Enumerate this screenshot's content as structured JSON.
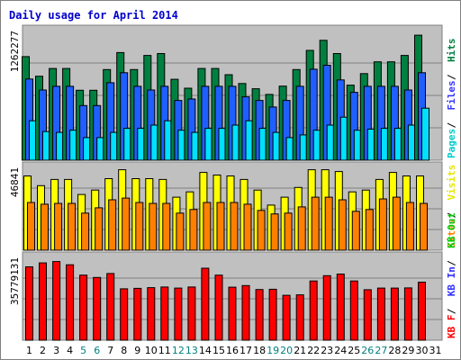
{
  "chart_data": {
    "type": "bar",
    "title": "Daily usage for April 2014",
    "categories": [
      "1",
      "2",
      "3",
      "4",
      "5",
      "6",
      "7",
      "8",
      "9",
      "10",
      "11",
      "12",
      "13",
      "14",
      "15",
      "16",
      "17",
      "18",
      "19",
      "20",
      "21",
      "22",
      "23",
      "24",
      "25",
      "26",
      "27",
      "28",
      "29",
      "30",
      "31"
    ],
    "weekend_days": [
      "5",
      "6",
      "12",
      "13",
      "19",
      "20",
      "26",
      "27"
    ],
    "grid": true,
    "panels": [
      {
        "id": "hits",
        "ymax_label": "1262277",
        "ymax": 1262277,
        "legend": [
          {
            "text": "Pages",
            "color": "#00cccc"
          },
          {
            "text": "Files",
            "color": "#3333ff"
          },
          {
            "text": "Hits",
            "color": "#008040"
          }
        ],
        "series": [
          {
            "name": "Hits",
            "color": "#008040",
            "values": [
              1009000,
              818000,
              893000,
              893000,
              681000,
              681000,
              883000,
              1048000,
              883000,
              1020000,
              1039000,
              788000,
              701000,
              893000,
              893000,
              833000,
              747000,
              696000,
              641000,
              721000,
              883000,
              1069000,
              1168000,
              1039000,
              731000,
              843000,
              958000,
              958000,
              1020000,
              1218000,
              null
            ]
          },
          {
            "name": "Files",
            "color": "#1f5fff",
            "values": [
              791000,
              684000,
              720000,
              720000,
              532000,
              532000,
              755000,
              852000,
              720000,
              684000,
              720000,
              582000,
              596000,
              720000,
              720000,
              720000,
              617000,
              582000,
              518000,
              582000,
              720000,
              886000,
              925000,
              782000,
              661000,
              720000,
              720000,
              720000,
              684000,
              852000,
              null
            ]
          },
          {
            "name": "Pages",
            "color": "#00e0ff",
            "values": [
              384000,
              279000,
              271000,
              292000,
              220000,
              220000,
              271000,
              310000,
              310000,
              342000,
              384000,
              292000,
              271000,
              310000,
              310000,
              342000,
              384000,
              310000,
              271000,
              220000,
              246000,
              292000,
              342000,
              419000,
              292000,
              302000,
              310000,
              310000,
              342000,
              507000,
              null
            ]
          }
        ]
      },
      {
        "id": "visits",
        "ymax_label": "46841",
        "ymax": 46841,
        "legend": [
          {
            "text": "Sites",
            "color": "#ff8000"
          },
          {
            "text": "Visits",
            "color": "#e6e600"
          }
        ],
        "series": [
          {
            "name": "Visits",
            "color": "#ffff00",
            "values": [
              42000,
              36500,
              40000,
              40000,
              31500,
              34000,
              40500,
              45500,
              40500,
              40500,
              40000,
              30000,
              33000,
              44000,
              42500,
              42000,
              40000,
              34000,
              25500,
              30000,
              35500,
              45500,
              45500,
              44500,
              33000,
              34000,
              40000,
              44000,
              42000,
              42000,
              null
            ]
          },
          {
            "name": "Sites",
            "color": "#ff8000",
            "values": [
              27000,
              26000,
              26500,
              26500,
              21000,
              24000,
              28500,
              29500,
              27000,
              26500,
              26500,
              21000,
              23000,
              27000,
              27000,
              27000,
              26000,
              22500,
              20500,
              21000,
              24500,
              30000,
              30000,
              28500,
              22000,
              23000,
              29000,
              30000,
              27000,
              26500,
              null
            ]
          }
        ]
      },
      {
        "id": "kbytes",
        "ymax_label": "35779131",
        "ymax": 35779131,
        "legend": [
          {
            "text": "KB F",
            "color": "#ff0000"
          },
          {
            "text": "KB In",
            "color": "#3333ff"
          },
          {
            "text": "KB Out",
            "color": "#00cc00"
          }
        ],
        "series": [
          {
            "name": "KB F",
            "color": "#ff0000",
            "values": [
              31700000,
              33400000,
              34000000,
              32600000,
              28100000,
              27100000,
              28800000,
              22200000,
              22400000,
              22700000,
              23000000,
              22500000,
              23000000,
              31100000,
              28100000,
              22900000,
              23600000,
              21900000,
              22000000,
              19400000,
              19600000,
              25600000,
              27900000,
              28600000,
              25600000,
              21800000,
              22500000,
              22500000,
              22600000,
              25100000,
              null
            ]
          }
        ]
      }
    ]
  }
}
